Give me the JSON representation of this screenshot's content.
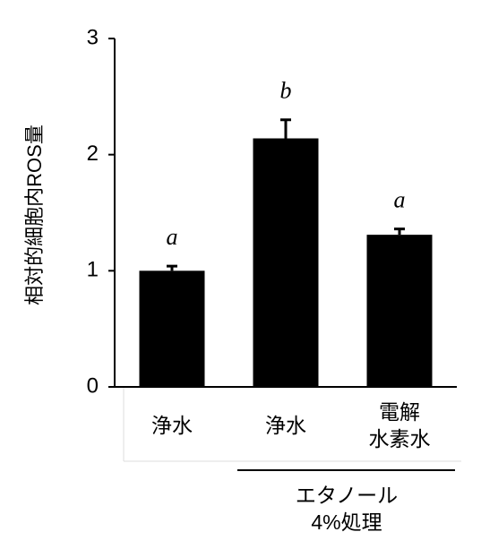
{
  "chart_data": {
    "type": "bar",
    "ylabel": "相対的細胞内ROS量",
    "categories": [
      "浄水",
      "浄水",
      "電解\n水素水"
    ],
    "values": [
      1.0,
      2.14,
      1.31
    ],
    "errors": [
      0.04,
      0.16,
      0.05
    ],
    "annotations": [
      "a",
      "b",
      "a"
    ],
    "group_label": "エタノール\n4%処理",
    "color": "#000000",
    "ylim": [
      0,
      3
    ],
    "yticks": [
      0,
      1,
      2,
      3
    ],
    "grid": false
  }
}
